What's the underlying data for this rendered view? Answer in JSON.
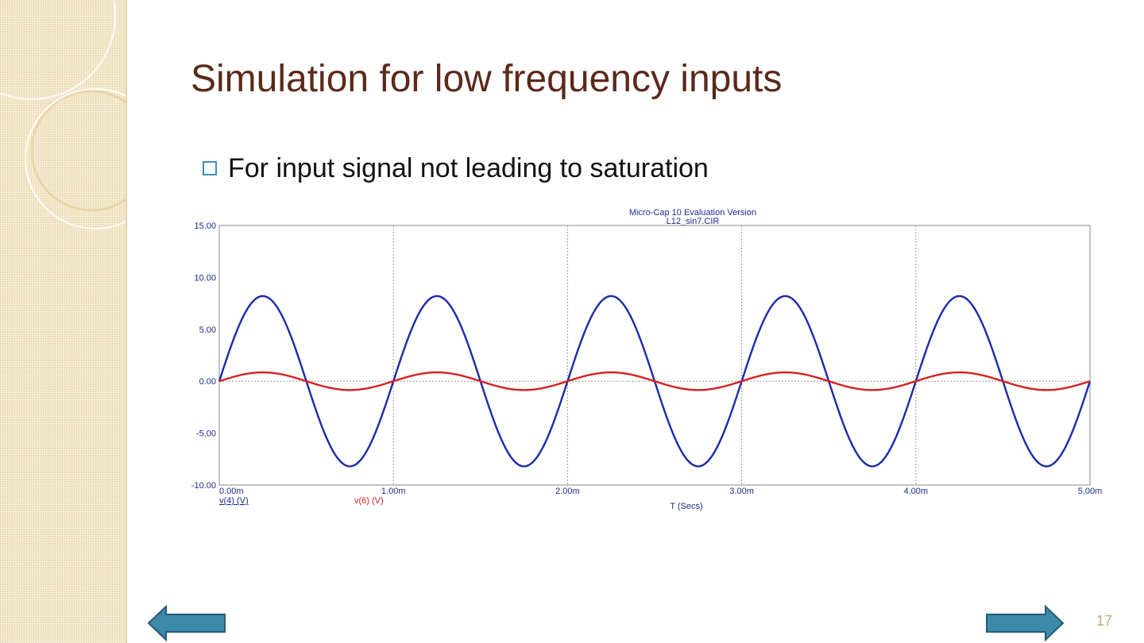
{
  "slide": {
    "title": "Simulation for low frequency inputs",
    "bullet": "For input signal not leading to saturation",
    "page_number": "17"
  },
  "colors": {
    "title": "#5a2a1a",
    "bullet_box": "#3d8fb0",
    "series_blue": "#1a2aa8",
    "series_red": "#d42020",
    "arrow_fill": "#3a8aa8",
    "arrow_stroke": "#2a5a7a"
  },
  "icons": {
    "left": "arrow-left-icon",
    "right": "arrow-right-icon"
  },
  "chart_data": {
    "type": "line",
    "title": "Micro-Cap 10 Evaluation Version",
    "subtitle": "L12_sin7.CIR",
    "xlabel": "T (Secs)",
    "ylabel": "",
    "xlim": [
      0,
      5
    ],
    "ylim": [
      -10,
      15
    ],
    "x_unit": "m",
    "x_ticks": [
      0,
      1,
      2,
      3,
      4,
      5
    ],
    "x_tick_labels": [
      "0.00m",
      "1.00m",
      "2.00m",
      "3.00m",
      "4.00m",
      "5.00m"
    ],
    "y_ticks": [
      15,
      10,
      5,
      0,
      -5,
      -10
    ],
    "y_tick_labels": [
      "15.00",
      "10.00",
      "5.00",
      "0.00",
      "-5.00",
      "-10.00"
    ],
    "grid": true,
    "series": [
      {
        "name": "v(4) (V)",
        "amplitude": 8.2,
        "period": 1.0,
        "color": "#1a2aa8"
      },
      {
        "name": "v(6) (V)",
        "amplitude": 0.85,
        "period": 1.0,
        "color": "#d42020"
      }
    ]
  }
}
